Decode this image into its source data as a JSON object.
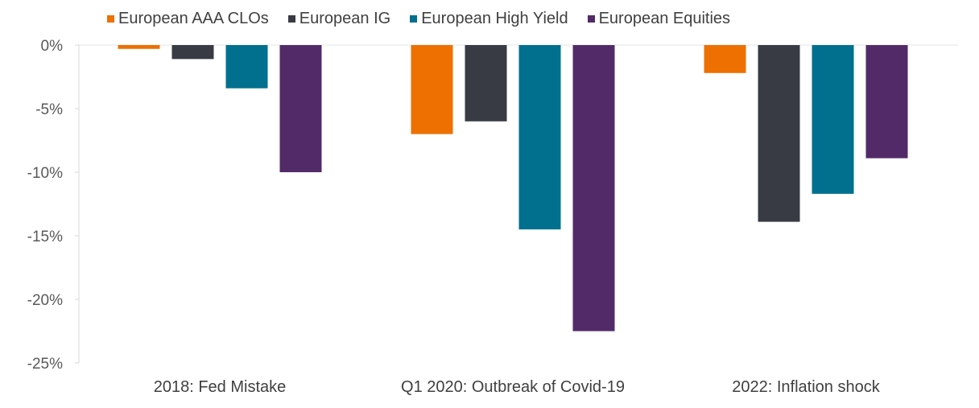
{
  "chart_data": {
    "type": "bar",
    "title": "",
    "xlabel": "",
    "ylabel": "",
    "ylim": [
      -25,
      0
    ],
    "yticks": [
      0,
      -5,
      -10,
      -15,
      -20,
      -25
    ],
    "ytick_labels": [
      "0%",
      "-5%",
      "-10%",
      "-15%",
      "-20%",
      "-25%"
    ],
    "grid": false,
    "legend_position": "top",
    "categories": [
      "2018: Fed Mistake",
      "Q1 2020: Outbreak of Covid-19",
      "2022: Inflation shock"
    ],
    "series": [
      {
        "name": "European AAA CLOs",
        "color": "#ED7000",
        "values": [
          -0.3,
          -7.0,
          -2.2
        ]
      },
      {
        "name": "European IG",
        "color": "#383B44",
        "values": [
          -1.1,
          -6.0,
          -13.9
        ]
      },
      {
        "name": "European High Yield",
        "color": "#00708F",
        "values": [
          -3.4,
          -14.5,
          -11.7
        ]
      },
      {
        "name": "European Equities",
        "color": "#532A68",
        "values": [
          -10.0,
          -22.5,
          -8.9
        ]
      }
    ]
  }
}
